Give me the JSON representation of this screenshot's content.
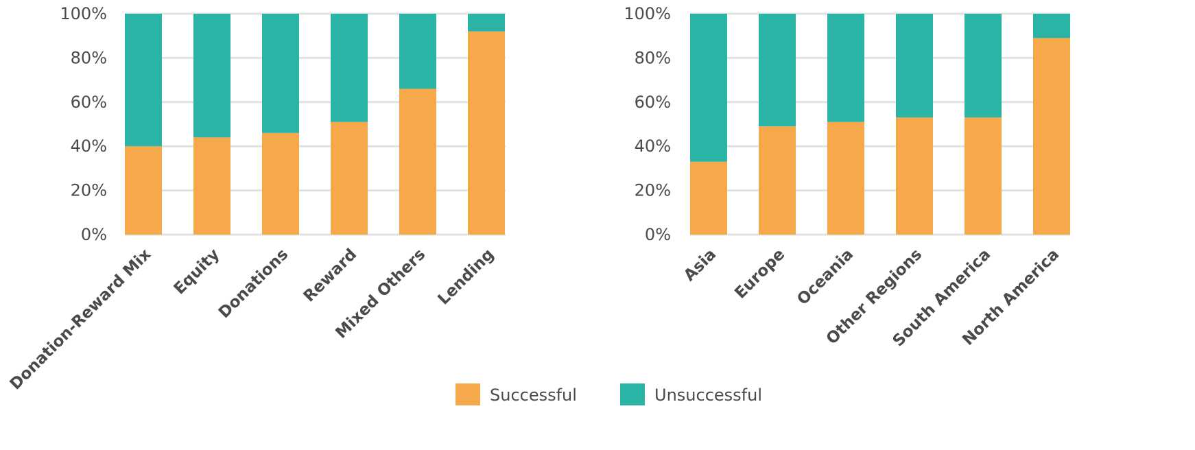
{
  "colors": {
    "successful": "#F5A94A",
    "unsuccessful": "#2BB3A5",
    "grid": "#e2e2e2",
    "text": "#4a4a4a"
  },
  "legend": {
    "successful": "Successful",
    "unsuccessful": "Unsuccessful"
  },
  "chart_data": [
    {
      "type": "bar",
      "stacked": true,
      "categories": [
        "Donation-Reward Mix",
        "Equity",
        "Donations",
        "Reward",
        "Mixed Others",
        "Lending"
      ],
      "series": [
        {
          "name": "Successful",
          "values": [
            40,
            44,
            46,
            51,
            66,
            92
          ]
        },
        {
          "name": "Unsuccessful",
          "values": [
            60,
            56,
            54,
            49,
            34,
            8
          ]
        }
      ],
      "ylim": [
        0,
        100
      ],
      "yticks": [
        "0%",
        "20%",
        "40%",
        "60%",
        "80%",
        "100%"
      ],
      "xlabel": "",
      "ylabel": "",
      "grid": true
    },
    {
      "type": "bar",
      "stacked": true,
      "categories": [
        "Asia",
        "Europe",
        "Oceania",
        "Other Regions",
        "South America",
        "North America"
      ],
      "series": [
        {
          "name": "Successful",
          "values": [
            33,
            49,
            51,
            53,
            53,
            89
          ]
        },
        {
          "name": "Unsuccessful",
          "values": [
            67,
            51,
            49,
            47,
            47,
            11
          ]
        }
      ],
      "ylim": [
        0,
        100
      ],
      "yticks": [
        "0%",
        "20%",
        "40%",
        "60%",
        "80%",
        "100%"
      ],
      "xlabel": "",
      "ylabel": "",
      "grid": true
    }
  ]
}
